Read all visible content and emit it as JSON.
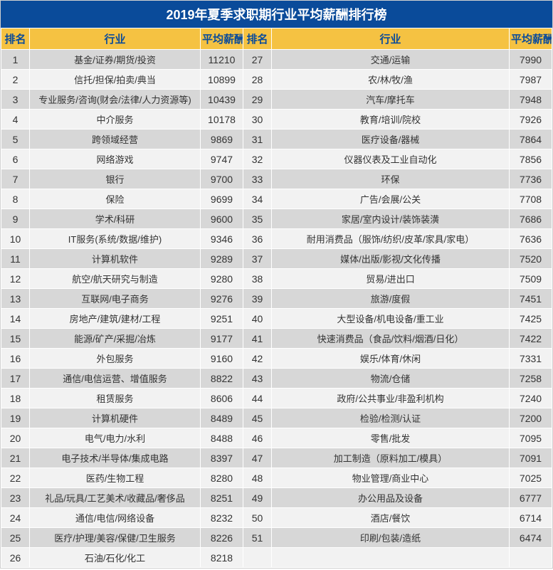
{
  "title": "2019年夏季求职期行业平均薪酬排行榜",
  "title_bg": "#0a4b9a",
  "title_color": "#ffffff",
  "title_fontsize": 18,
  "header_bg": "#f5c242",
  "header_color": "#0a4b9a",
  "header_fontsize": 15,
  "row_odd_bg": "#d7d7d7",
  "row_even_bg": "#f2f2f2",
  "text_color": "#333333",
  "columns": {
    "rank": "排名",
    "industry": "行业",
    "salary": "平均薪酬"
  },
  "left": [
    {
      "rank": 1,
      "industry": "基金/证券/期货/投资",
      "salary": 11210
    },
    {
      "rank": 2,
      "industry": "信托/担保/拍卖/典当",
      "salary": 10899
    },
    {
      "rank": 3,
      "industry": "专业服务/咨询(财会/法律/人力资源等)",
      "salary": 10439
    },
    {
      "rank": 4,
      "industry": "中介服务",
      "salary": 10178
    },
    {
      "rank": 5,
      "industry": "跨领域经营",
      "salary": 9869
    },
    {
      "rank": 6,
      "industry": "网络游戏",
      "salary": 9747
    },
    {
      "rank": 7,
      "industry": "银行",
      "salary": 9700
    },
    {
      "rank": 8,
      "industry": "保险",
      "salary": 9699
    },
    {
      "rank": 9,
      "industry": "学术/科研",
      "salary": 9600
    },
    {
      "rank": 10,
      "industry": "IT服务(系统/数据/维护)",
      "salary": 9346
    },
    {
      "rank": 11,
      "industry": "计算机软件",
      "salary": 9289
    },
    {
      "rank": 12,
      "industry": "航空/航天研究与制造",
      "salary": 9280
    },
    {
      "rank": 13,
      "industry": "互联网/电子商务",
      "salary": 9276
    },
    {
      "rank": 14,
      "industry": "房地产/建筑/建材/工程",
      "salary": 9251
    },
    {
      "rank": 15,
      "industry": "能源/矿产/采掘/冶炼",
      "salary": 9177
    },
    {
      "rank": 16,
      "industry": "外包服务",
      "salary": 9160
    },
    {
      "rank": 17,
      "industry": "通信/电信运营、增值服务",
      "salary": 8822
    },
    {
      "rank": 18,
      "industry": "租赁服务",
      "salary": 8606
    },
    {
      "rank": 19,
      "industry": "计算机硬件",
      "salary": 8489
    },
    {
      "rank": 20,
      "industry": "电气/电力/水利",
      "salary": 8488
    },
    {
      "rank": 21,
      "industry": "电子技术/半导体/集成电路",
      "salary": 8397
    },
    {
      "rank": 22,
      "industry": "医药/生物工程",
      "salary": 8280
    },
    {
      "rank": 23,
      "industry": "礼品/玩具/工艺美术/收藏品/奢侈品",
      "salary": 8251
    },
    {
      "rank": 24,
      "industry": "通信/电信/网络设备",
      "salary": 8232
    },
    {
      "rank": 25,
      "industry": "医疗/护理/美容/保健/卫生服务",
      "salary": 8226
    },
    {
      "rank": 26,
      "industry": "石油/石化/化工",
      "salary": 8218
    }
  ],
  "right": [
    {
      "rank": 27,
      "industry": "交通/运输",
      "salary": 7990
    },
    {
      "rank": 28,
      "industry": "农/林/牧/渔",
      "salary": 7987
    },
    {
      "rank": 29,
      "industry": "汽车/摩托车",
      "salary": 7948
    },
    {
      "rank": 30,
      "industry": "教育/培训/院校",
      "salary": 7926
    },
    {
      "rank": 31,
      "industry": "医疗设备/器械",
      "salary": 7864
    },
    {
      "rank": 32,
      "industry": "仪器仪表及工业自动化",
      "salary": 7856
    },
    {
      "rank": 33,
      "industry": "环保",
      "salary": 7736
    },
    {
      "rank": 34,
      "industry": "广告/会展/公关",
      "salary": 7708
    },
    {
      "rank": 35,
      "industry": "家居/室内设计/装饰装潢",
      "salary": 7686
    },
    {
      "rank": 36,
      "industry": "耐用消费品（服饰/纺织/皮革/家具/家电）",
      "salary": 7636
    },
    {
      "rank": 37,
      "industry": "媒体/出版/影视/文化传播",
      "salary": 7520
    },
    {
      "rank": 38,
      "industry": "贸易/进出口",
      "salary": 7509
    },
    {
      "rank": 39,
      "industry": "旅游/度假",
      "salary": 7451
    },
    {
      "rank": 40,
      "industry": "大型设备/机电设备/重工业",
      "salary": 7425
    },
    {
      "rank": 41,
      "industry": "快速消费品（食品/饮料/烟酒/日化）",
      "salary": 7422
    },
    {
      "rank": 42,
      "industry": "娱乐/体育/休闲",
      "salary": 7331
    },
    {
      "rank": 43,
      "industry": "物流/仓储",
      "salary": 7258
    },
    {
      "rank": 44,
      "industry": "政府/公共事业/非盈利机构",
      "salary": 7240
    },
    {
      "rank": 45,
      "industry": "检验/检测/认证",
      "salary": 7200
    },
    {
      "rank": 46,
      "industry": "零售/批发",
      "salary": 7095
    },
    {
      "rank": 47,
      "industry": "加工制造（原料加工/模具）",
      "salary": 7091
    },
    {
      "rank": 48,
      "industry": "物业管理/商业中心",
      "salary": 7025
    },
    {
      "rank": 49,
      "industry": "办公用品及设备",
      "salary": 6777
    },
    {
      "rank": 50,
      "industry": "酒店/餐饮",
      "salary": 6714
    },
    {
      "rank": 51,
      "industry": "印刷/包装/造纸",
      "salary": 6474
    },
    {
      "rank": "",
      "industry": "",
      "salary": ""
    }
  ]
}
